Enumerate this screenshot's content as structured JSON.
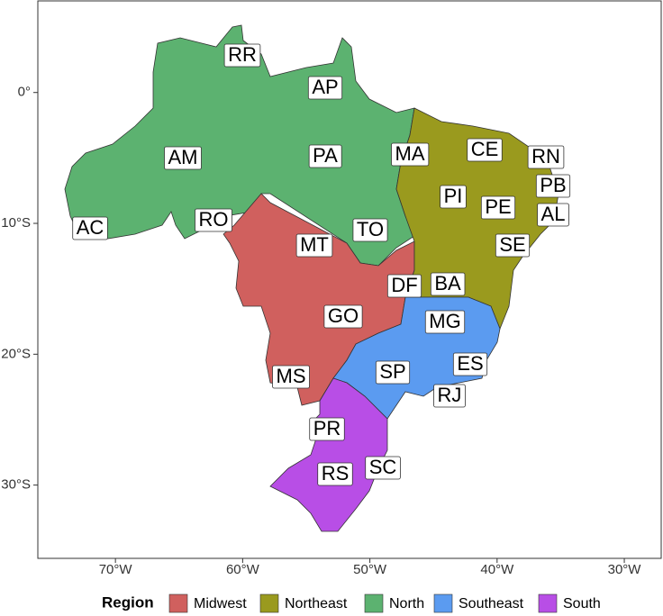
{
  "map": {
    "xlim": [
      -76.1,
      -27.1
    ],
    "ylim": [
      -35.6,
      7.0
    ],
    "xticks": [
      {
        "value": -70,
        "label": "70°W"
      },
      {
        "value": -60,
        "label": "60°W"
      },
      {
        "value": -50,
        "label": "50°W"
      },
      {
        "value": -40,
        "label": "40°W"
      },
      {
        "value": -30,
        "label": "30°W"
      }
    ],
    "yticks": [
      {
        "value": 0,
        "label": "0°"
      },
      {
        "value": -10,
        "label": "10°S"
      },
      {
        "value": -20,
        "label": "20°S"
      },
      {
        "value": -30,
        "label": "30°S"
      }
    ],
    "states": [
      "RR",
      "AP",
      "AM",
      "PA",
      "MA",
      "CE",
      "RN",
      "PB",
      "PI",
      "PE",
      "AL",
      "AC",
      "RO",
      "TO",
      "MT",
      "SE",
      "DF",
      "BA",
      "GO",
      "MG",
      "ES",
      "MS",
      "SP",
      "RJ",
      "PR",
      "SC",
      "RS"
    ],
    "legend": {
      "title": "Region",
      "items": [
        {
          "name": "Midwest",
          "color": "#d0605e"
        },
        {
          "name": "Northeast",
          "color": "#9a9a1e"
        },
        {
          "name": "North",
          "color": "#5cb270"
        },
        {
          "name": "Southeast",
          "color": "#5b9bf0"
        },
        {
          "name": "South",
          "color": "#b84ee6"
        }
      ]
    }
  }
}
